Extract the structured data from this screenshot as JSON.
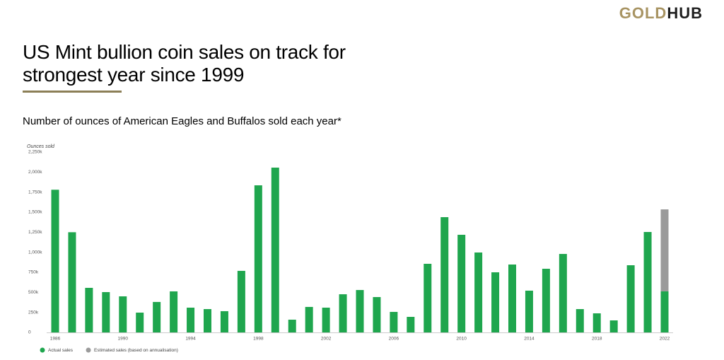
{
  "logo": {
    "part1": "GOLD",
    "part2": "HUB"
  },
  "chart_data": {
    "type": "bar",
    "stacked": true,
    "title": "US Mint bullion coin sales on track for strongest year since 1999",
    "subtitle": "Number of ounces of American Eagles and Buffalos sold each year*",
    "y_label": "Ounces sold",
    "categories": [
      "1986",
      null,
      null,
      null,
      "1990",
      null,
      null,
      null,
      "1994",
      null,
      null,
      null,
      "1998",
      null,
      null,
      null,
      "2002",
      null,
      null,
      null,
      "2006",
      null,
      null,
      null,
      "2010",
      null,
      null,
      null,
      "2014",
      null,
      null,
      null,
      "2018",
      null,
      null,
      null,
      "2022"
    ],
    "series": [
      {
        "name": "Actual sales",
        "color": "#1fa64e",
        "values": [
          1780,
          1250,
          556,
          503,
          450,
          247,
          380,
          512,
          309,
          291,
          265,
          768,
          1835,
          2056,
          159,
          318,
          309,
          476,
          529,
          441,
          256,
          194,
          856,
          1438,
          1218,
          997,
          750,
          847,
          521,
          794,
          979,
          291,
          238,
          150,
          838,
          1253,
          512
        ]
      },
      {
        "name": "Estimated sales (based on annualisation)",
        "color": "#9b9b9b",
        "values": [
          null,
          null,
          null,
          null,
          null,
          null,
          null,
          null,
          null,
          null,
          null,
          null,
          null,
          null,
          null,
          null,
          null,
          null,
          null,
          null,
          null,
          null,
          null,
          null,
          null,
          null,
          null,
          null,
          null,
          null,
          null,
          null,
          null,
          null,
          null,
          null,
          1023
        ]
      }
    ],
    "ylim": [
      0,
      2250
    ],
    "yticks": [
      0,
      {
        "value": 250,
        "label": "250k"
      },
      {
        "value": 500,
        "label": "500k"
      },
      {
        "value": 750,
        "label": "750k"
      },
      {
        "value": 1000,
        "label": "1,000k"
      },
      {
        "value": 1250,
        "label": "1,250k"
      },
      {
        "value": 1500,
        "label": "1,500k"
      },
      {
        "value": 1750,
        "label": "1,750k"
      },
      {
        "value": 2000,
        "label": "2,000k"
      },
      {
        "value": 2250,
        "label": "2,250k"
      }
    ],
    "grid": false,
    "legend": "bottom-left"
  }
}
